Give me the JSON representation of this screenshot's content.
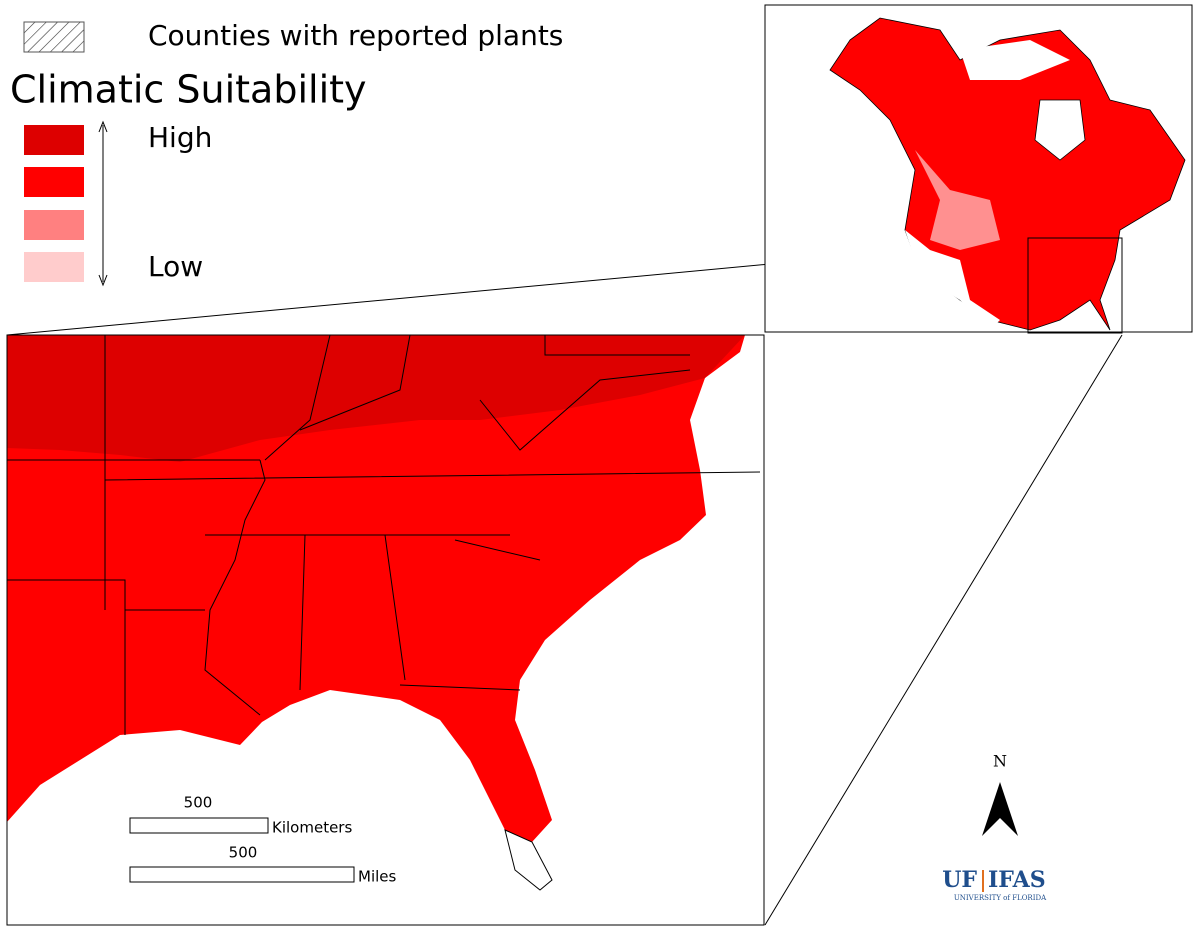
{
  "legend": {
    "hatch_label": "Counties with reported plants",
    "title": "Climatic Suitability",
    "high": "High",
    "low": "Low"
  },
  "scale_bar": {
    "km_value": "500",
    "km_unit": "Kilometers",
    "mi_value": "500",
    "mi_unit": "Miles"
  },
  "north_arrow": "N",
  "logo": {
    "left": "UF",
    "right": "IFAS",
    "subtitle": "UNIVERSITY of FLORIDA"
  }
}
